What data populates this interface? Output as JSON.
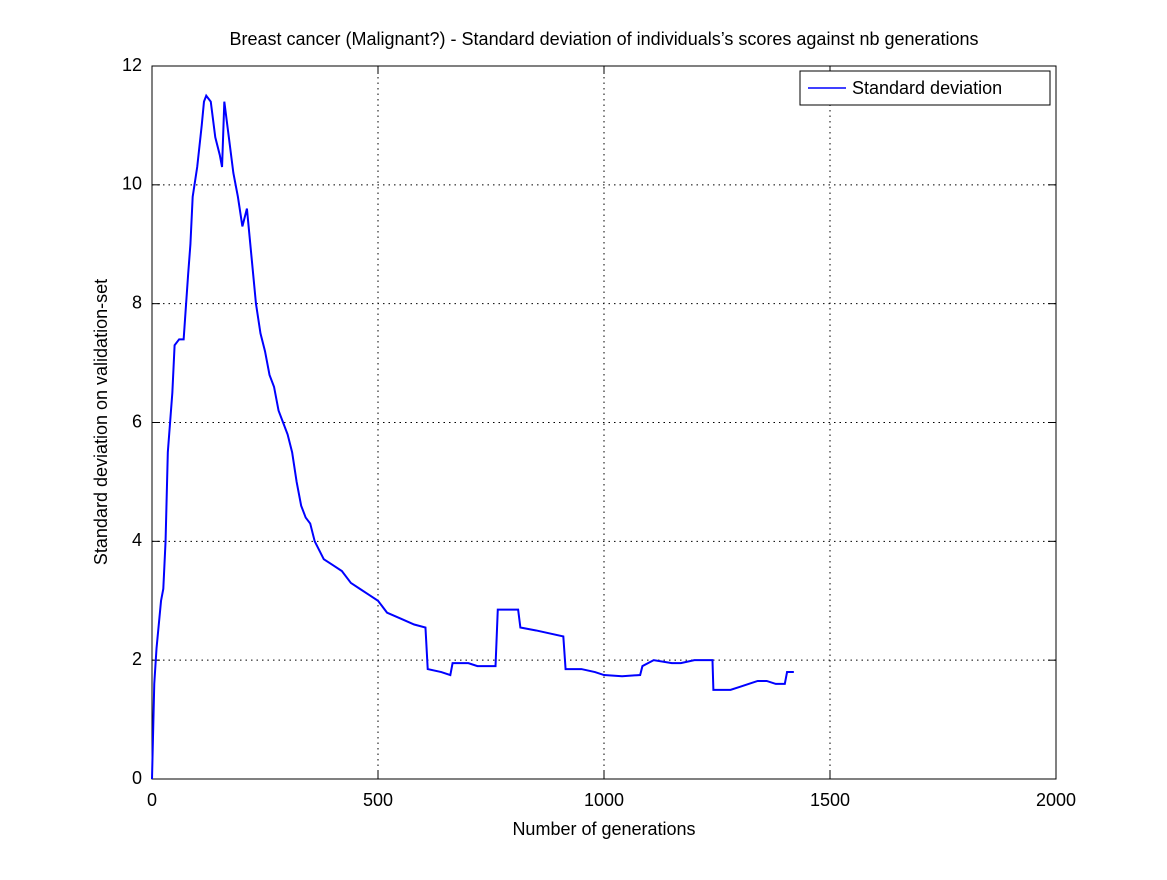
{
  "chart_data": {
    "type": "line",
    "title": "Breast cancer (Malignant?) - Standard deviation of individuals’s scores against nb generations",
    "x_label": "Number of generations",
    "y_label": "Standard deviation on validation-set",
    "x": [
      0,
      5,
      10,
      20,
      25,
      30,
      35,
      45,
      50,
      60,
      70,
      80,
      85,
      90,
      100,
      110,
      115,
      120,
      130,
      140,
      150,
      155,
      160,
      170,
      180,
      190,
      200,
      210,
      220,
      230,
      240,
      250,
      260,
      270,
      280,
      290,
      300,
      310,
      320,
      330,
      340,
      350,
      360,
      380,
      400,
      420,
      440,
      460,
      480,
      500,
      520,
      550,
      580,
      605,
      610,
      640,
      660,
      665,
      700,
      720,
      760,
      765,
      810,
      815,
      850,
      880,
      910,
      915,
      950,
      980,
      1000,
      1040,
      1080,
      1085,
      1110,
      1150,
      1170,
      1200,
      1240,
      1242,
      1280,
      1300,
      1320,
      1340,
      1360,
      1380,
      1400,
      1405,
      1420
    ],
    "series": [
      {
        "name": "Standard deviation",
        "color": "#0000ff",
        "values": [
          0,
          1.6,
          2.2,
          3.0,
          3.2,
          4.0,
          5.5,
          6.5,
          7.3,
          7.4,
          7.4,
          8.5,
          9.0,
          9.8,
          10.3,
          11.0,
          11.4,
          11.5,
          11.4,
          10.8,
          10.5,
          10.3,
          11.4,
          10.8,
          10.2,
          9.8,
          9.3,
          9.6,
          8.8,
          8.0,
          7.5,
          7.2,
          6.8,
          6.6,
          6.2,
          6.0,
          5.8,
          5.5,
          5.0,
          4.6,
          4.4,
          4.3,
          4.0,
          3.7,
          3.6,
          3.5,
          3.3,
          3.2,
          3.1,
          3.0,
          2.8,
          2.7,
          2.6,
          2.55,
          1.85,
          1.8,
          1.75,
          1.95,
          1.95,
          1.9,
          1.9,
          2.85,
          2.85,
          2.55,
          2.5,
          2.45,
          2.4,
          1.85,
          1.85,
          1.8,
          1.75,
          1.73,
          1.75,
          1.9,
          2.0,
          1.95,
          1.95,
          2.0,
          2.0,
          1.5,
          1.5,
          1.55,
          1.6,
          1.65,
          1.65,
          1.6,
          1.6,
          1.8,
          1.8
        ]
      }
    ],
    "xlim": [
      0,
      2000
    ],
    "xticks": [
      0,
      500,
      1000,
      1500,
      2000
    ],
    "ylim": [
      0,
      12
    ],
    "yticks": [
      0,
      2,
      4,
      6,
      8,
      10,
      12
    ],
    "grid": true,
    "legend": "top-right"
  }
}
